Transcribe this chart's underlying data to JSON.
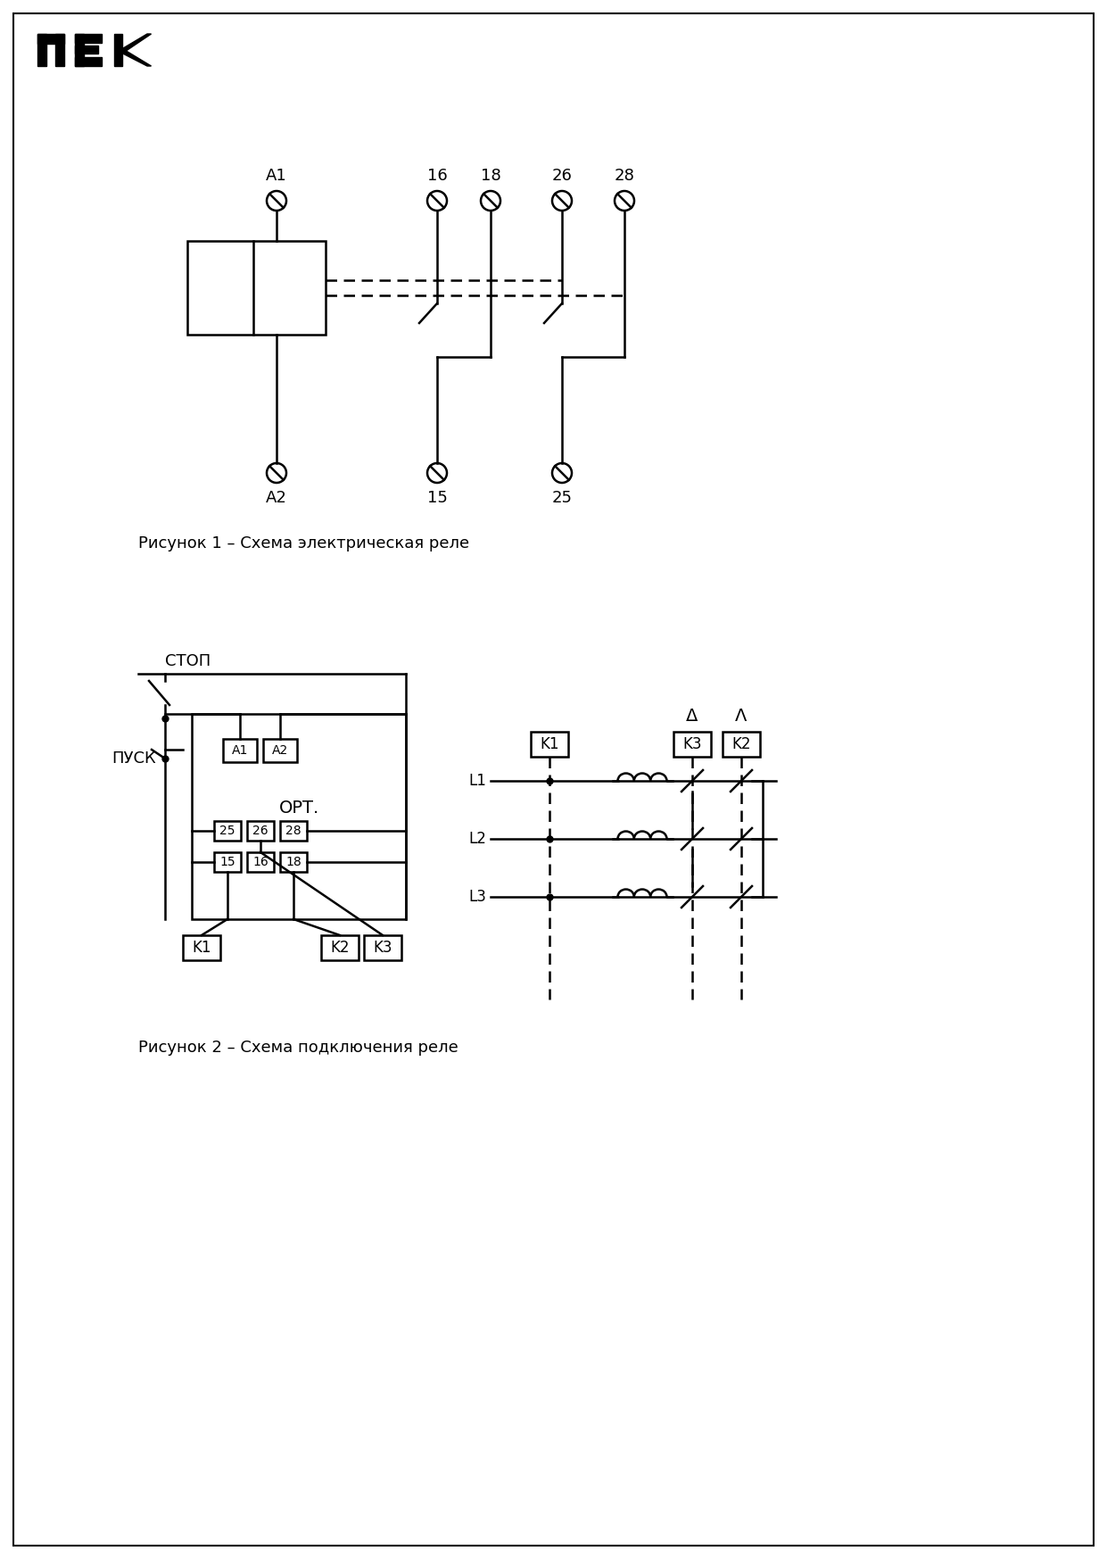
{
  "bg_color": "#ffffff",
  "border_color": "#000000",
  "line_color": "#000000",
  "fig_width": 12.41,
  "fig_height": 17.47,
  "dpi": 100,
  "fig1_caption": "Рисунок 1 – Схема электрическая реле",
  "fig2_caption": "Рисунок 2 – Схема подключения реле",
  "stop_label": "СТОП",
  "pusk_label": "ПУСК",
  "ort_label": "ОРТ.",
  "delta_label": "Δ",
  "star_label": "Λ"
}
